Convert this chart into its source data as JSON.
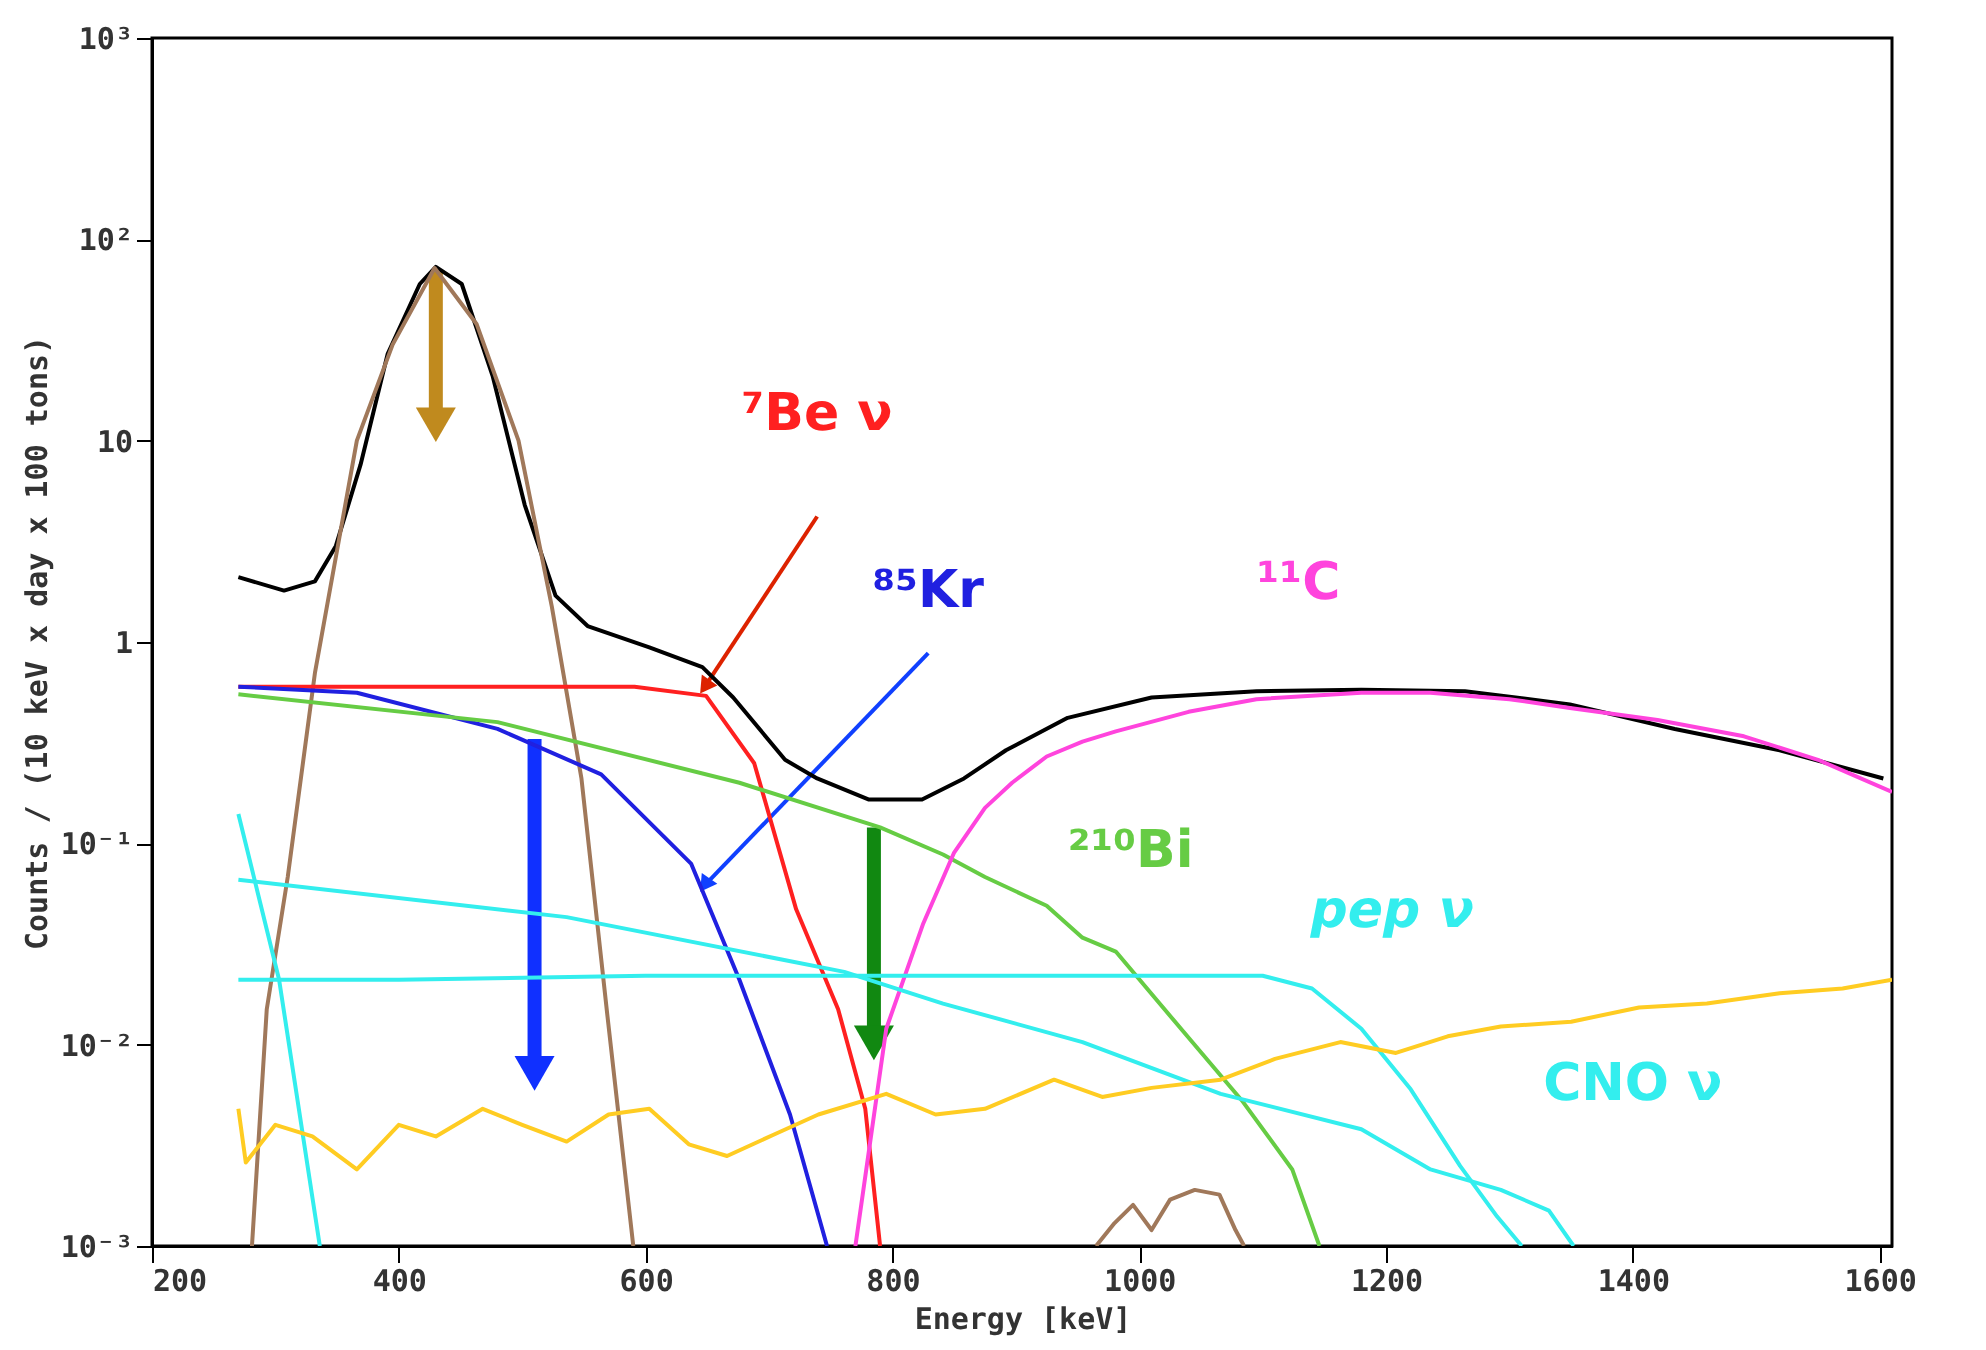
{
  "chart_data": {
    "type": "line",
    "xlabel": "Energy [keV]",
    "ylabel": "Counts / (10 keV x day x 100 tons)",
    "log": true,
    "grid": false,
    "xlim": [
      200,
      1610
    ],
    "xticks": [
      200,
      400,
      600,
      800,
      1000,
      1200,
      1400,
      1600
    ],
    "ylim": [
      0.001,
      1000
    ],
    "yticks": [
      {
        "value": 0.001,
        "label": "10⁻³"
      },
      {
        "value": 0.01,
        "label": "10⁻²"
      },
      {
        "value": 0.1,
        "label": "10⁻¹"
      },
      1,
      10,
      {
        "value": 100,
        "label": "10²"
      },
      {
        "value": 1000,
        "label": "10³"
      }
    ],
    "series": [
      {
        "color": "#000000",
        "x": [
          270,
          307,
          332,
          349,
          369,
          391,
          417,
          430,
          451,
          476,
          502,
          527,
          553,
          603,
          646,
          671,
          713,
          739,
          781,
          824,
          858,
          892,
          942,
          1010,
          1095,
          1180,
          1264,
          1349,
          1434,
          1519,
          1603
        ],
        "values": [
          2.1,
          1.8,
          2.0,
          3.0,
          7.6,
          27,
          60,
          73,
          60,
          21,
          4.8,
          1.7,
          1.2,
          0.94,
          0.75,
          0.53,
          0.26,
          0.21,
          0.165,
          0.165,
          0.21,
          0.29,
          0.42,
          0.53,
          0.57,
          0.58,
          0.57,
          0.49,
          0.37,
          0.29,
          0.21
        ]
      },
      {
        "color": "#a0785a",
        "x": [
          281,
          293,
          310,
          332,
          366,
          395,
          429,
          463,
          497,
          524,
          548,
          569,
          590
        ],
        "values": [
          0.001,
          0.015,
          0.068,
          0.7,
          10,
          30,
          72,
          38,
          10,
          1.5,
          0.21,
          0.014,
          0.001
        ]
      },
      {
        "name": "⁷Be ν",
        "color": "#ff2020",
        "x": [
          270,
          400,
          500,
          591,
          649,
          688,
          722,
          756,
          778,
          790
        ],
        "values": [
          0.6,
          0.6,
          0.6,
          0.6,
          0.54,
          0.25,
          0.047,
          0.015,
          0.0048,
          0.001
        ]
      },
      {
        "name": "⁸⁵Kr",
        "color": "#2020e0",
        "x": [
          270,
          366,
          480,
          564,
          637,
          676,
          717,
          747
        ],
        "values": [
          0.6,
          0.56,
          0.37,
          0.22,
          0.079,
          0.021,
          0.0045,
          0.001
        ]
      },
      {
        "name": "²¹⁰Bi",
        "color": "#66cc44",
        "x": [
          270,
          480,
          676,
          790,
          841,
          875,
          925,
          954,
          981,
          1039,
          1083,
          1124,
          1146
        ],
        "values": [
          0.55,
          0.4,
          0.2,
          0.12,
          0.088,
          0.068,
          0.049,
          0.034,
          0.029,
          0.011,
          0.0053,
          0.0024,
          0.001
        ]
      },
      {
        "name": "¹¹C",
        "color": "#ff44dd",
        "x": [
          770,
          795,
          825,
          850,
          875,
          897,
          925,
          954,
          981,
          1040,
          1095,
          1180,
          1236,
          1300,
          1349,
          1420,
          1490,
          1550,
          1610
        ],
        "values": [
          0.001,
          0.012,
          0.04,
          0.09,
          0.15,
          0.2,
          0.27,
          0.32,
          0.36,
          0.45,
          0.52,
          0.56,
          0.56,
          0.52,
          0.47,
          0.41,
          0.34,
          0.26,
          0.18
        ]
      },
      {
        "color": "#33eeee",
        "x": [
          270,
          303,
          336
        ],
        "values": [
          0.14,
          0.021,
          0.001
        ]
      },
      {
        "name": "pep ν",
        "color": "#33eeee",
        "x": [
          270,
          400,
          600,
          800,
          950,
          1100,
          1140,
          1180,
          1220,
          1260,
          1290,
          1310
        ],
        "values": [
          0.021,
          0.021,
          0.022,
          0.022,
          0.022,
          0.022,
          0.019,
          0.012,
          0.006,
          0.0025,
          0.0014,
          0.001
        ]
      },
      {
        "name": "CNO ν",
        "color": "#33eeee",
        "x": [
          270,
          536,
          761,
          841,
          954,
          1066,
          1180,
          1236,
          1293,
          1332,
          1352
        ],
        "values": [
          0.066,
          0.043,
          0.023,
          0.016,
          0.0103,
          0.0057,
          0.0038,
          0.0024,
          0.0019,
          0.0015,
          0.001
        ]
      },
      {
        "color": "#ffcc22",
        "x": [
          270,
          276,
          300,
          330,
          366,
          400,
          430,
          468,
          500,
          536,
          570,
          603,
          635,
          666,
          705,
          740,
          795,
          835,
          875,
          931,
          970,
          1010,
          1066,
          1110,
          1163,
          1208,
          1250,
          1293,
          1350,
          1405,
          1460,
          1519,
          1570,
          1610
        ],
        "values": [
          0.0048,
          0.0026,
          0.004,
          0.0035,
          0.0024,
          0.004,
          0.0035,
          0.0048,
          0.004,
          0.0033,
          0.0045,
          0.0048,
          0.0032,
          0.0028,
          0.0036,
          0.0045,
          0.0057,
          0.0045,
          0.0048,
          0.0067,
          0.0055,
          0.0061,
          0.0067,
          0.0085,
          0.0103,
          0.0091,
          0.011,
          0.0123,
          0.013,
          0.0153,
          0.016,
          0.018,
          0.019,
          0.021
        ]
      },
      {
        "color": "#a0785a",
        "x": [
          965,
          980,
          995,
          1010,
          1025,
          1045,
          1065,
          1078,
          1085
        ],
        "values": [
          0.001,
          0.0013,
          0.0016,
          0.0012,
          0.0017,
          0.0019,
          0.0018,
          0.0012,
          0.001
        ]
      }
    ]
  }
}
